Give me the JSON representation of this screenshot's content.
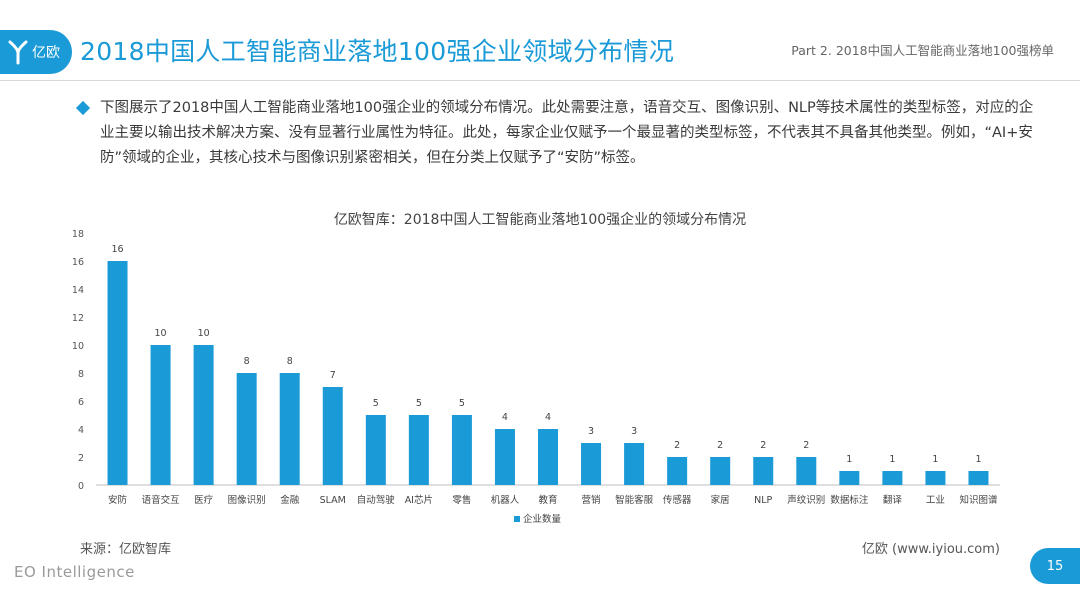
{
  "header": {
    "logo_text": "亿欧",
    "title": "2018中国人工智能商业落地100强企业领域分布情况",
    "part_label": "Part 2. 2018中国人工智能商业落地100强榜单"
  },
  "bullet": {
    "text": "下图展示了2018中国人工智能商业落地100强企业的领域分布情况。此处需要注意，语音交互、图像识别、NLP等技术属性的类型标签，对应的企业主要以输出技术解决方案、没有显著行业属性为特征。此处，每家企业仅赋予一个最显著的类型标签，不代表其不具备其他类型。例如，“AI+安防”领域的企业，其核心技术与图像识别紧密相关，但在分类上仅赋予了“安防”标签。"
  },
  "chart_data": {
    "type": "bar",
    "title": "亿欧智库：2018中国人工智能商业落地100强企业的领域分布情况",
    "categories": [
      "安防",
      "语音交互",
      "医疗",
      "图像识别",
      "金融",
      "SLAM",
      "自动驾驶",
      "AI芯片",
      "零售",
      "机器人",
      "教育",
      "营销",
      "智能客服",
      "传感器",
      "家居",
      "NLP",
      "声纹识别",
      "数据标注",
      "翻译",
      "工业",
      "知识图谱"
    ],
    "series": [
      {
        "name": "企业数量",
        "values": [
          16,
          10,
          10,
          8,
          8,
          7,
          5,
          5,
          5,
          4,
          4,
          3,
          3,
          2,
          2,
          2,
          2,
          1,
          1,
          1,
          1
        ]
      }
    ],
    "ylim": [
      0,
      18
    ],
    "yticks": [
      0,
      2,
      4,
      6,
      8,
      10,
      12,
      14,
      16,
      18
    ],
    "grid": false,
    "legend": "bottom",
    "data_labels": true,
    "bar_color": "#1a9ad6"
  },
  "footer": {
    "source_left": "来源：亿欧智库",
    "source_right": "亿欧 (www.iyiou.com)",
    "brand": "EO Intelligence",
    "page_number": "15"
  }
}
